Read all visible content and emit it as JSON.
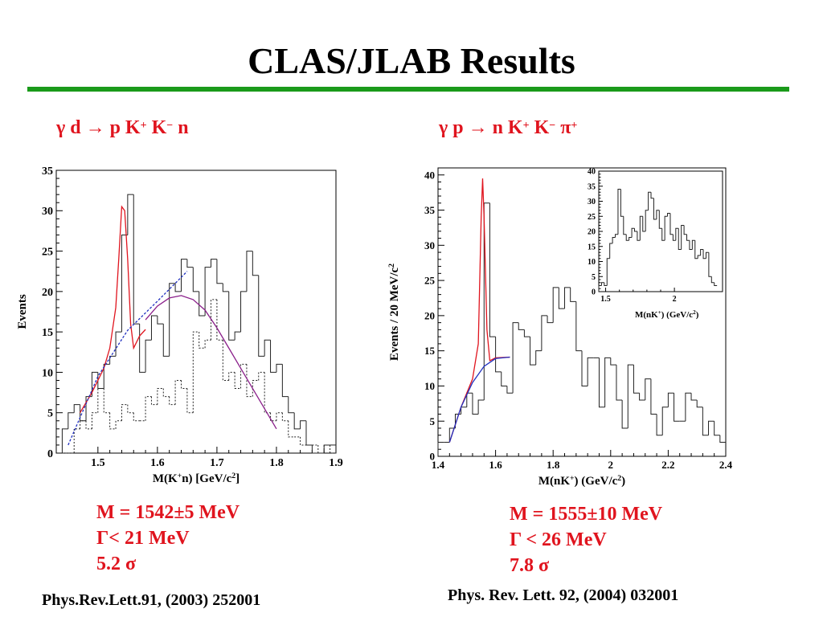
{
  "title": "CLAS/JLAB Results",
  "colors": {
    "rule": "#1a9a1a",
    "accent": "#e0141e",
    "fit_red": "#e0141e",
    "fit_blue": "#2030c0",
    "fit_purple": "#8a1f8a"
  },
  "left": {
    "reaction": {
      "pre": "γ d ",
      "arrow": "→",
      "mid": " p K",
      "sup1": "+",
      "mid2": " K",
      "sup2": "−",
      "post": " n"
    },
    "results": [
      "M = 1542±5 MeV",
      "Γ< 21 MeV",
      "5.2 σ"
    ],
    "reference": "Phys.Rev.Lett.91, (2003) 252001"
  },
  "right": {
    "reaction": {
      "pre": "γ p ",
      "arrow": "→",
      "mid": " n K",
      "sup1": "+",
      "mid2": " K",
      "sup2": "−",
      "post": " π",
      "sup3": "+"
    },
    "results": [
      "M = 1555±10 MeV",
      "Γ < 26 MeV",
      "7.8 σ"
    ],
    "reference": "Phys. Rev. Lett. 92, (2004) 032001"
  },
  "chart_data": [
    {
      "type": "bar",
      "style": "step-histogram",
      "xlabel": "M(K+n) [GeV/c2]",
      "ylabel": "Events",
      "xlim": [
        1.43,
        1.9
      ],
      "ylim": [
        0,
        35
      ],
      "xticks": [
        "1.5",
        "1.6",
        "1.7",
        "1.8",
        "1.9"
      ],
      "yticks": [
        "0",
        "5",
        "10",
        "15",
        "20",
        "25",
        "30",
        "35"
      ],
      "bin_width": 0.01,
      "series": [
        {
          "style": "solid",
          "x0": 1.44,
          "values": [
            3,
            5,
            6,
            4,
            7,
            10,
            8,
            11,
            12,
            15,
            27,
            32,
            16,
            10,
            14,
            17,
            16,
            12,
            21,
            20,
            24,
            23,
            20,
            17,
            23,
            24,
            21,
            20,
            14,
            15,
            20,
            25,
            22,
            12,
            14,
            10,
            11,
            7,
            5,
            3,
            4,
            1,
            0,
            0,
            1,
            1
          ]
        },
        {
          "style": "dotted",
          "x0": 1.44,
          "values": [
            0,
            0,
            3,
            4,
            3,
            5,
            8,
            5,
            3,
            4,
            6,
            5,
            4,
            4,
            7,
            6,
            8,
            7,
            6,
            9,
            8,
            5,
            15,
            13,
            14,
            19,
            14,
            9,
            10,
            8,
            11,
            7,
            9,
            10,
            5,
            4,
            5,
            4,
            2,
            2,
            1,
            1,
            1,
            0,
            1,
            0
          ]
        }
      ],
      "fits": [
        {
          "name": "peak",
          "color": "red",
          "x": [
            1.47,
            1.49,
            1.51,
            1.52,
            1.53,
            1.535,
            1.54,
            1.545,
            1.55,
            1.555,
            1.56,
            1.57,
            1.58
          ],
          "y": [
            5,
            7.5,
            10.5,
            13,
            18,
            24,
            30.5,
            30,
            24,
            16,
            13,
            14.5,
            15.3
          ]
        },
        {
          "name": "background",
          "color": "purple",
          "x": [
            1.58,
            1.6,
            1.62,
            1.64,
            1.66,
            1.68,
            1.7,
            1.72,
            1.74,
            1.76,
            1.78,
            1.8
          ],
          "y": [
            16.5,
            18.2,
            19.2,
            19.5,
            19,
            17.7,
            15.5,
            13,
            10.5,
            8,
            5.5,
            3
          ]
        },
        {
          "name": "dashed",
          "color": "blue",
          "x": [
            1.45,
            1.5,
            1.55,
            1.6,
            1.65
          ],
          "y": [
            1,
            9.5,
            15.2,
            18.8,
            22.5
          ]
        }
      ]
    },
    {
      "type": "bar",
      "style": "step-histogram",
      "xlabel": "M(nK+) (GeV/c2)",
      "ylabel": "Events / 20 MeV/c2",
      "xlim": [
        1.4,
        2.4
      ],
      "ylim": [
        0,
        41
      ],
      "xticks": [
        "1.4",
        "1.6",
        "1.8",
        "2",
        "2.2",
        "2.4"
      ],
      "yticks": [
        "0",
        "5",
        "10",
        "15",
        "20",
        "25",
        "30",
        "35",
        "40"
      ],
      "bin_width": 0.02,
      "series": [
        {
          "style": "solid",
          "x0": 1.4,
          "values": [
            2,
            2,
            4,
            6,
            7,
            9,
            6,
            8,
            36,
            17,
            12,
            10,
            9,
            19,
            18,
            17,
            13,
            15,
            20,
            19,
            24,
            21,
            24,
            22,
            15,
            10,
            14,
            14,
            7,
            14,
            13,
            8,
            4,
            13,
            9,
            8,
            11,
            6,
            3,
            7,
            9,
            5,
            5,
            9,
            8,
            7,
            3,
            5,
            3,
            2
          ]
        }
      ],
      "fits": [
        {
          "name": "peak",
          "color": "red",
          "x": [
            1.44,
            1.48,
            1.52,
            1.54,
            1.55,
            1.555,
            1.56,
            1.57,
            1.58,
            1.6,
            1.65
          ],
          "y": [
            2,
            7,
            11,
            16,
            34,
            39.5,
            34,
            18,
            13.6,
            14,
            14.1
          ]
        },
        {
          "name": "background",
          "color": "blue",
          "x": [
            1.44,
            1.48,
            1.52,
            1.56,
            1.6,
            1.65
          ],
          "y": [
            2,
            7,
            10.5,
            12.8,
            13.9,
            14.1
          ]
        }
      ],
      "inset": {
        "xlabel": "M(nK+) (GeV/c2)",
        "xlim": [
          1.45,
          2.35
        ],
        "ylim": [
          0,
          40
        ],
        "xticks": [
          "1.5",
          "2"
        ],
        "yticks": [
          "0",
          "5",
          "10",
          "15",
          "20",
          "25",
          "30",
          "35",
          "40"
        ],
        "x0": 1.45,
        "bin_width": 0.02,
        "values": [
          2,
          3,
          2,
          11,
          16,
          18,
          19,
          34,
          25,
          19,
          17,
          18,
          21,
          20,
          17,
          25,
          20,
          27,
          33,
          31,
          24,
          27,
          21,
          17,
          25,
          26,
          19,
          17,
          21,
          14,
          22,
          19,
          17,
          14,
          17,
          11,
          12,
          14,
          11,
          13,
          5,
          3,
          2
        ]
      }
    }
  ]
}
